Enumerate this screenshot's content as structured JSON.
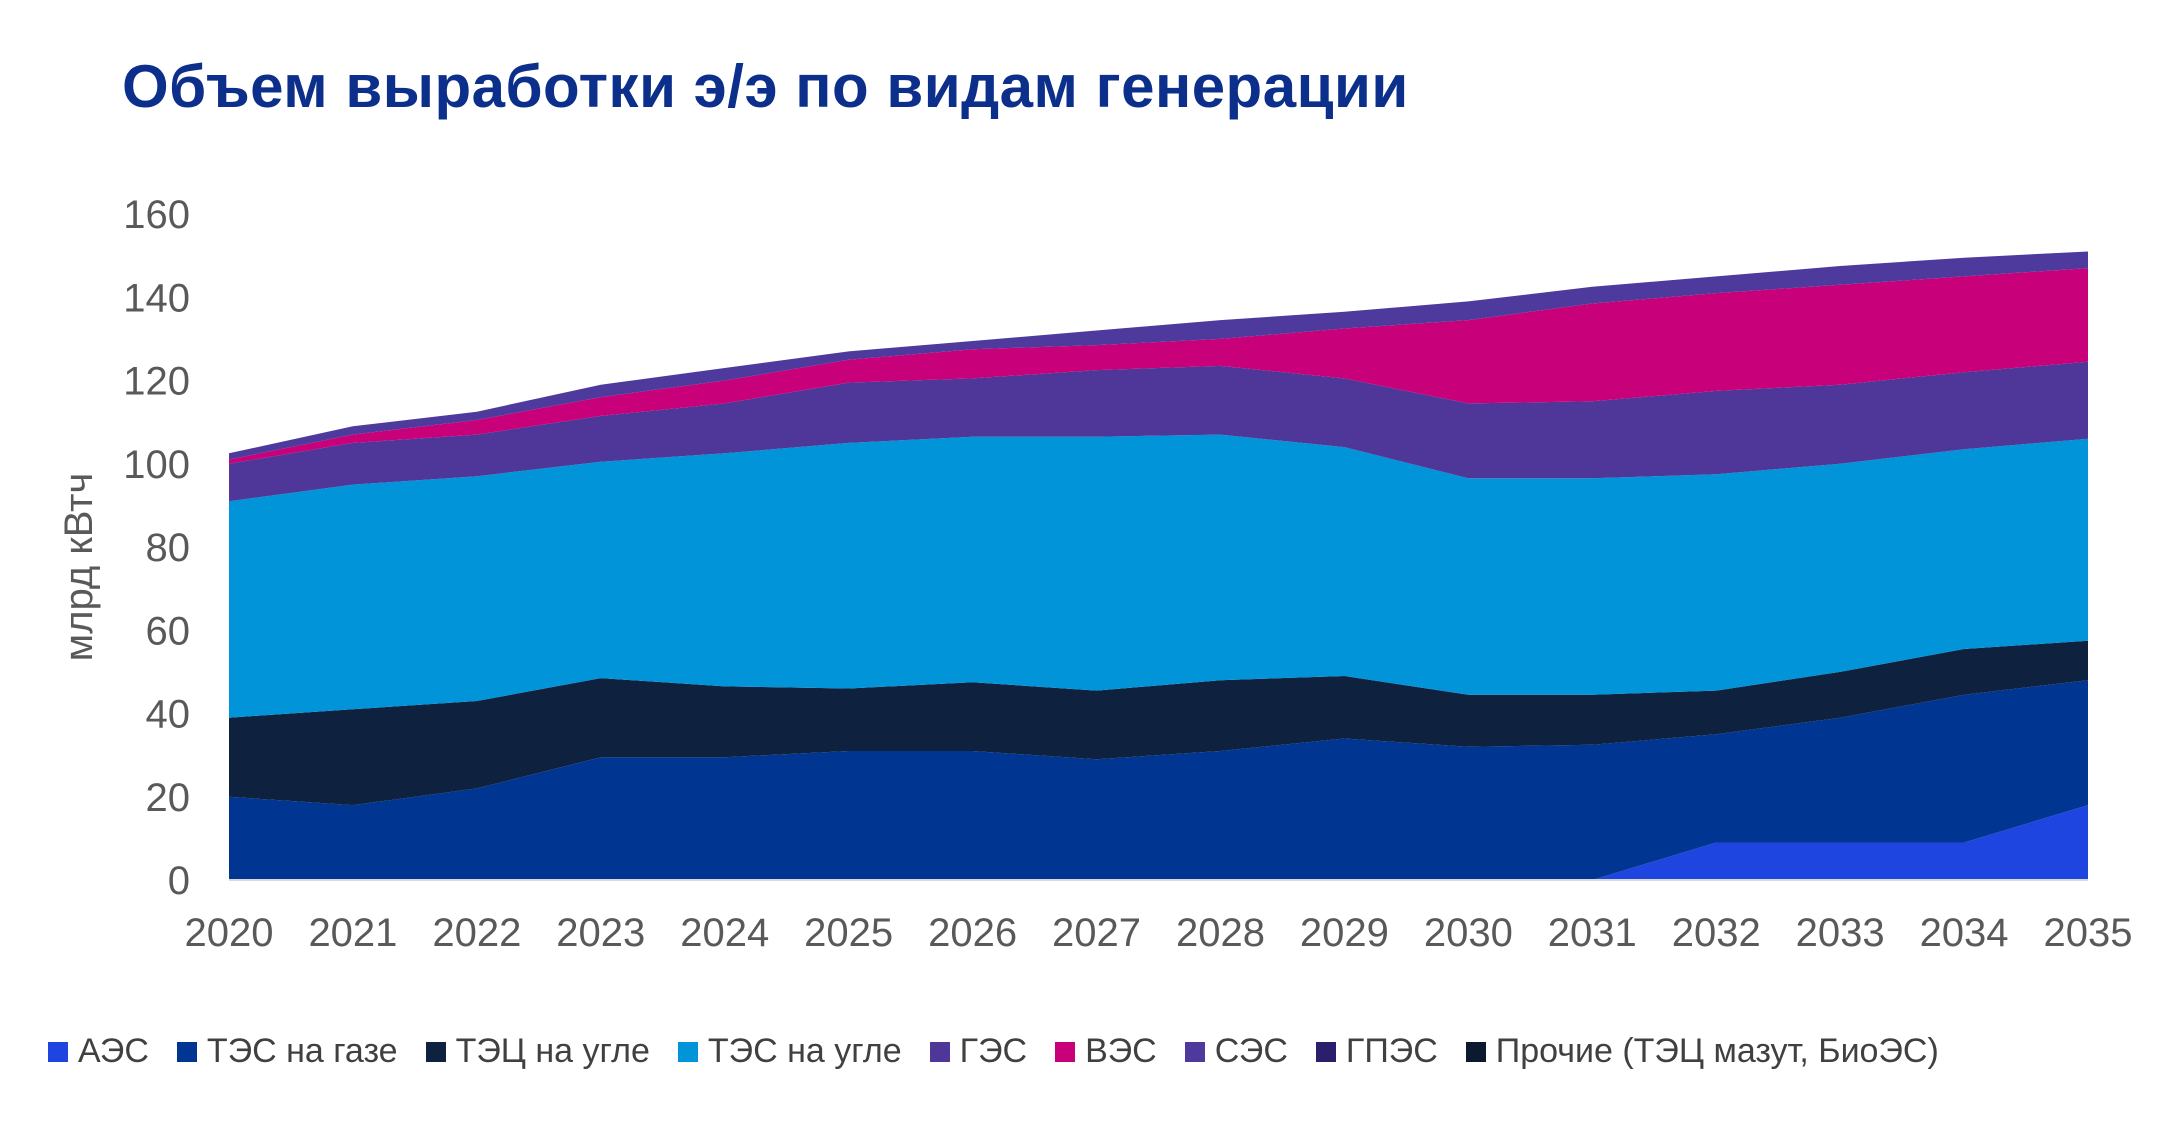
{
  "title": "Объем выработки э/э по видам генерации",
  "chart_data": {
    "type": "area",
    "stacked": true,
    "title": "Объем выработки э/э по видам генерации",
    "xlabel": "",
    "ylabel": "млрд кВтч",
    "ylim": [
      0,
      160
    ],
    "yticks": [
      0,
      20,
      40,
      60,
      80,
      100,
      120,
      140,
      160
    ],
    "x": [
      "2020",
      "2021",
      "2022",
      "2023",
      "2024",
      "2025",
      "2026",
      "2027",
      "2028",
      "2029",
      "2030",
      "2031",
      "2032",
      "2033",
      "2034",
      "2035"
    ],
    "grid": false,
    "legend_position": "bottom",
    "series": [
      {
        "name": "АЭС",
        "color": "#1f45e0",
        "values": [
          0,
          0,
          0,
          0,
          0,
          0,
          0,
          0,
          0,
          0,
          0,
          0,
          9,
          9,
          9,
          18
        ]
      },
      {
        "name": "ТЭС на газе",
        "color": "#003591",
        "values": [
          20,
          18,
          22,
          29.5,
          29.5,
          31,
          31,
          29,
          31,
          34,
          32,
          32.5,
          26,
          30,
          35.5,
          30
        ]
      },
      {
        "name": "ТЭЦ на угле",
        "color": "#0e223f",
        "values": [
          19,
          23,
          21,
          19,
          17,
          15,
          16.5,
          16.5,
          17,
          15,
          12.5,
          12,
          10.5,
          11,
          11,
          9.5
        ]
      },
      {
        "name": "ТЭС на угле",
        "color": "#0194d8",
        "values": [
          52,
          54,
          54,
          52,
          56,
          59,
          59,
          61,
          59,
          55,
          52,
          52,
          52,
          50,
          48,
          48.5
        ]
      },
      {
        "name": "ГЭС",
        "color": "#4f3699",
        "values": [
          9,
          10,
          10,
          11,
          12,
          14.5,
          14,
          16,
          16.5,
          16.5,
          18,
          18.5,
          20,
          19,
          18.5,
          18.5
        ]
      },
      {
        "name": "ВЭС",
        "color": "#c8007a",
        "values": [
          1,
          2,
          3.5,
          4.5,
          5.5,
          5.5,
          7,
          6,
          6.5,
          12,
          20,
          23.5,
          23.5,
          24,
          23,
          22.5
        ]
      },
      {
        "name": "СЭС",
        "color": "#4d3a9c",
        "values": [
          1.5,
          2,
          2,
          3,
          3,
          2,
          2,
          3.5,
          4.5,
          4,
          4.5,
          4,
          4,
          4.5,
          4.5,
          4
        ]
      },
      {
        "name": "ГПЭС",
        "color": "#2b1f6b",
        "values": [
          0,
          0,
          0,
          0,
          0,
          0,
          0,
          0,
          0,
          0,
          0,
          0,
          0,
          0,
          0,
          0
        ]
      },
      {
        "name": "Прочие (ТЭЦ мазут, БиоЭС)",
        "color": "#0b1a2e",
        "values": [
          0,
          0,
          0,
          0,
          0,
          0,
          0,
          0,
          0,
          0,
          0,
          0,
          0,
          0,
          0,
          0
        ]
      }
    ]
  }
}
